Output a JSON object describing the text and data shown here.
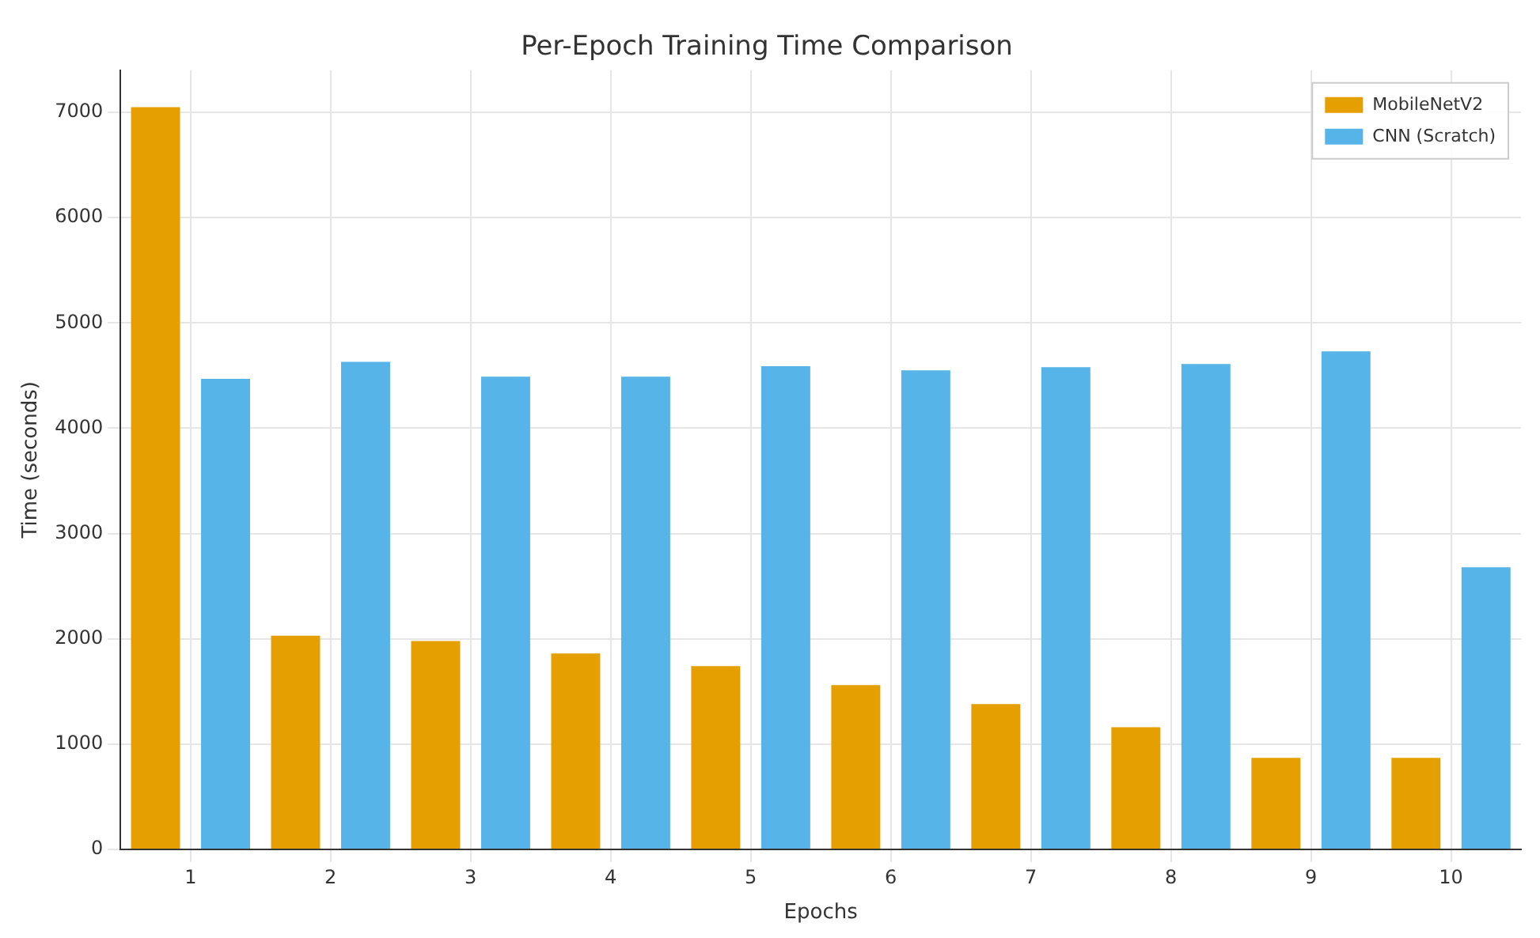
{
  "chart_data": {
    "type": "bar",
    "title": "Per-Epoch Training Time Comparison",
    "xlabel": "Epochs",
    "ylabel": "Time (seconds)",
    "categories": [
      "1",
      "2",
      "3",
      "4",
      "5",
      "6",
      "7",
      "8",
      "9",
      "10"
    ],
    "series": [
      {
        "name": "MobileNetV2",
        "color": "#e69f00",
        "values": [
          7050,
          2030,
          1980,
          1860,
          1740,
          1560,
          1380,
          1160,
          870,
          870
        ]
      },
      {
        "name": "CNN (Scratch)",
        "color": "#56b4e9",
        "values": [
          4470,
          4630,
          4490,
          4490,
          4590,
          4550,
          4580,
          4610,
          4730,
          2680
        ]
      }
    ],
    "ylim": [
      0,
      7400
    ],
    "yticks": [
      0,
      1000,
      2000,
      3000,
      4000,
      5000,
      6000,
      7000
    ],
    "grid": true,
    "legend": "top right"
  }
}
